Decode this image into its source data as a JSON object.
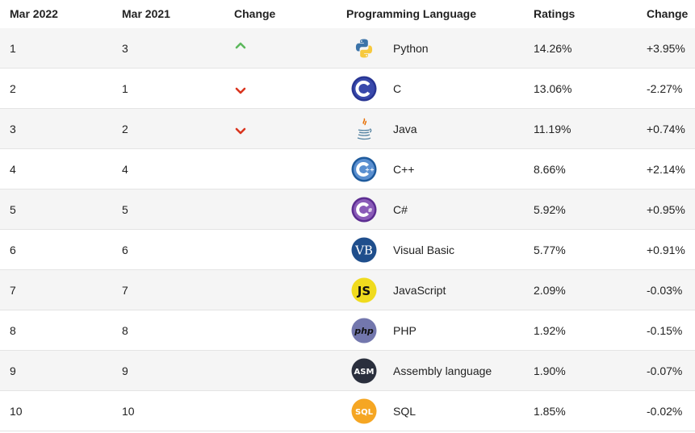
{
  "header": {
    "col_rank_now": "Mar 2022",
    "col_rank_prev": "Mar 2021",
    "col_change": "Change",
    "col_language": "Programming Language",
    "col_ratings": "Ratings",
    "col_delta": "Change"
  },
  "rows": [
    {
      "rank_now": "1",
      "rank_prev": "3",
      "trend": "up",
      "icon": "python-logo-icon",
      "language": "Python",
      "rating": "14.26%",
      "delta": "+3.95%"
    },
    {
      "rank_now": "2",
      "rank_prev": "1",
      "trend": "down",
      "icon": "c-logo-icon",
      "language": "C",
      "rating": "13.06%",
      "delta": "-2.27%"
    },
    {
      "rank_now": "3",
      "rank_prev": "2",
      "trend": "down",
      "icon": "java-logo-icon",
      "language": "Java",
      "rating": "11.19%",
      "delta": "+0.74%"
    },
    {
      "rank_now": "4",
      "rank_prev": "4",
      "trend": "none",
      "icon": "cpp-logo-icon",
      "language": "C++",
      "rating": "8.66%",
      "delta": "+2.14%"
    },
    {
      "rank_now": "5",
      "rank_prev": "5",
      "trend": "none",
      "icon": "csharp-logo-icon",
      "language": "C#",
      "rating": "5.92%",
      "delta": "+0.95%"
    },
    {
      "rank_now": "6",
      "rank_prev": "6",
      "trend": "none",
      "icon": "visual-basic-logo-icon",
      "icon_text": "VB",
      "language": "Visual Basic",
      "rating": "5.77%",
      "delta": "+0.91%"
    },
    {
      "rank_now": "7",
      "rank_prev": "7",
      "trend": "none",
      "icon": "javascript-logo-icon",
      "icon_text": "JS",
      "language": "JavaScript",
      "rating": "2.09%",
      "delta": "-0.03%"
    },
    {
      "rank_now": "8",
      "rank_prev": "8",
      "trend": "none",
      "icon": "php-logo-icon",
      "icon_text": "php",
      "language": "PHP",
      "rating": "1.92%",
      "delta": "-0.15%"
    },
    {
      "rank_now": "9",
      "rank_prev": "9",
      "trend": "none",
      "icon": "assembly-logo-icon",
      "icon_text": "ASM",
      "language": "Assembly language",
      "rating": "1.90%",
      "delta": "-0.07%"
    },
    {
      "rank_now": "10",
      "rank_prev": "10",
      "trend": "none",
      "icon": "sql-logo-icon",
      "icon_text": "SQL",
      "language": "SQL",
      "rating": "1.85%",
      "delta": "-0.02%"
    }
  ],
  "colors": {
    "up_arrow": "#5cb85c",
    "down_arrow": "#d9341e",
    "row_alt": "#f5f5f5",
    "separator": "#e4e4e4"
  }
}
